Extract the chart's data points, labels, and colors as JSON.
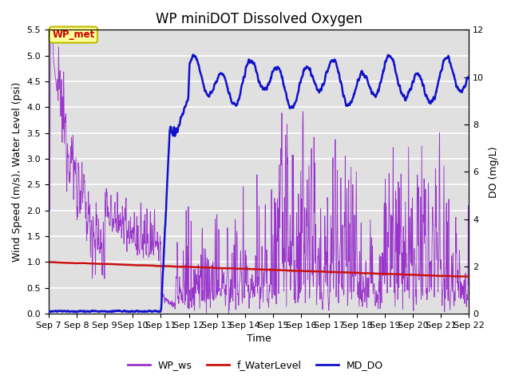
{
  "title": "WP miniDOT Dissolved Oxygen",
  "xlabel": "Time",
  "ylabel_left": "Wind Speed (m/s), Water Level (psi)",
  "ylabel_right": "DO (mg/L)",
  "ylim_left": [
    0,
    5.5
  ],
  "ylim_right": [
    0,
    12
  ],
  "yticks_left": [
    0.0,
    0.5,
    1.0,
    1.5,
    2.0,
    2.5,
    3.0,
    3.5,
    4.0,
    4.5,
    5.0,
    5.5
  ],
  "yticks_right": [
    0,
    2,
    4,
    6,
    8,
    10,
    12
  ],
  "xtick_labels": [
    "Sep 7",
    "Sep 8",
    "Sep 9",
    "Sep 10",
    "Sep 11",
    "Sep 12",
    "Sep 13",
    "Sep 14",
    "Sep 15",
    "Sep 16",
    "Sep 17",
    "Sep 18",
    "Sep 19",
    "Sep 20",
    "Sep 21",
    "Sep 22"
  ],
  "color_ws": "#9933CC",
  "color_wl": "#CC1111",
  "color_do": "#1111CC",
  "annotation_text": "WP_met",
  "annotation_color": "#CC0000",
  "annotation_bg": "#FFFF99",
  "annotation_border": "#BBBB00",
  "legend_labels": [
    "WP_ws",
    "f_WaterLevel",
    "MD_DO"
  ],
  "bg_color": "#E0E0E0",
  "bg_color2": "#EBEBEB",
  "title_fontsize": 12,
  "axis_fontsize": 9,
  "tick_fontsize": 8,
  "legend_fontsize": 9
}
